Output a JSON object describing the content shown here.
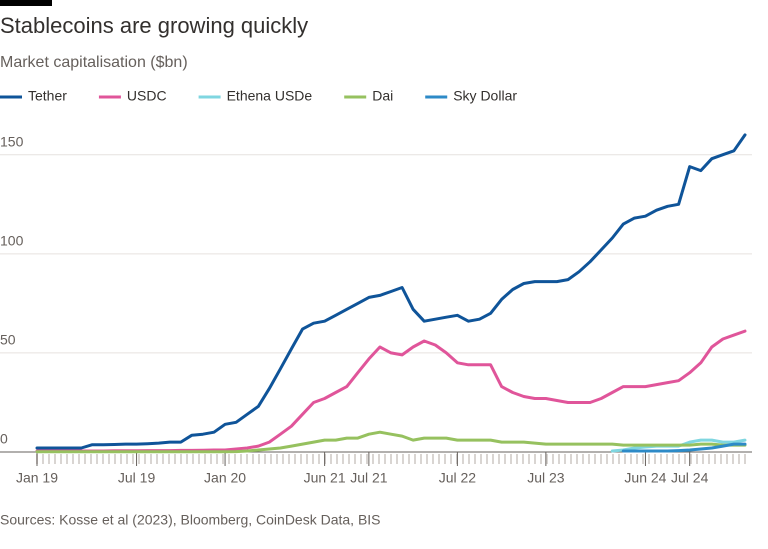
{
  "chart_data": {
    "type": "line",
    "title": "Stablecoins are growing quickly",
    "subtitle": "Market capitalisation ($bn)",
    "source": "Sources: Kosse et al (2023), Bloomberg, CoinDesk Data, BIS",
    "categories": [
      "Jan 19",
      null,
      null,
      null,
      null,
      null,
      null,
      null,
      null,
      "Jul 19",
      null,
      null,
      null,
      null,
      null,
      null,
      null,
      "Jan 20",
      null,
      null,
      null,
      null,
      null,
      null,
      null,
      null,
      "Jun 21",
      null,
      null,
      null,
      "Jul 21",
      null,
      null,
      null,
      null,
      null,
      null,
      null,
      "Jul 22",
      null,
      null,
      null,
      null,
      null,
      null,
      null,
      "Jul 23",
      null,
      null,
      null,
      null,
      null,
      null,
      null,
      null,
      "Jun 24",
      null,
      null,
      null,
      "Jul 24",
      null,
      null,
      null,
      null,
      null
    ],
    "series": [
      {
        "name": "Tether",
        "color": "#0f5499",
        "values": [
          2,
          2,
          2,
          2,
          2,
          3.7,
          3.7,
          3.8,
          4,
          4,
          4.2,
          4.5,
          5,
          5,
          8.5,
          9,
          10,
          14,
          15,
          19,
          23,
          32,
          42,
          52,
          62,
          65,
          66,
          69,
          72,
          75,
          78,
          79,
          81,
          83,
          72,
          66,
          67,
          68,
          69,
          66,
          67,
          70,
          77,
          82,
          85,
          86,
          86,
          86,
          87,
          91,
          96,
          102,
          108,
          115,
          118,
          119,
          122,
          124,
          125,
          144,
          142,
          148,
          150,
          152,
          160
        ]
      },
      {
        "name": "USDC",
        "color": "#e0559a",
        "values": [
          0.5,
          0.5,
          0.5,
          0.5,
          0.5,
          0.5,
          0.5,
          0.6,
          0.6,
          0.6,
          0.7,
          0.7,
          0.7,
          0.8,
          0.8,
          0.9,
          1,
          1,
          1.5,
          2,
          3,
          5,
          9,
          13,
          19,
          25,
          27,
          30,
          33,
          40,
          47,
          53,
          50,
          49,
          53,
          56,
          54,
          50,
          45,
          44,
          44,
          44,
          33,
          30,
          28,
          27,
          27,
          26,
          25,
          25,
          25,
          27,
          30,
          33,
          33,
          33,
          34,
          35,
          36,
          40,
          45,
          53,
          57,
          59,
          61
        ]
      },
      {
        "name": "Ethena USDe",
        "color": "#7fd6e0",
        "values": [
          null,
          null,
          null,
          null,
          null,
          null,
          null,
          null,
          null,
          null,
          null,
          null,
          null,
          null,
          null,
          null,
          null,
          null,
          null,
          null,
          null,
          null,
          null,
          null,
          null,
          null,
          null,
          null,
          null,
          null,
          null,
          null,
          null,
          null,
          null,
          null,
          null,
          null,
          null,
          null,
          null,
          null,
          null,
          null,
          null,
          null,
          null,
          null,
          null,
          null,
          null,
          null,
          0.5,
          1,
          2,
          2.5,
          3,
          3,
          3,
          5,
          6,
          6,
          5,
          5,
          6
        ]
      },
      {
        "name": "Dai",
        "color": "#96c15f",
        "values": [
          0.1,
          0.1,
          0.1,
          0.1,
          0.1,
          0.1,
          0.1,
          0.1,
          0.1,
          0.1,
          0.1,
          0.1,
          0.1,
          0.1,
          0.1,
          0.1,
          0.1,
          0.1,
          0.2,
          0.5,
          1,
          1.5,
          2,
          3,
          4,
          5,
          6,
          6,
          7,
          7,
          9,
          10,
          9,
          8,
          6,
          7,
          7,
          7,
          6,
          6,
          6,
          6,
          5,
          5,
          5,
          4.5,
          4,
          4,
          4,
          4,
          4,
          4,
          4,
          3.5,
          3.5,
          3.5,
          3.5,
          3.5,
          3.5,
          3.5,
          4,
          4,
          3.5,
          3.5,
          3.5
        ]
      },
      {
        "name": "Sky Dollar",
        "color": "#2d8ac7",
        "values": [
          null,
          null,
          null,
          null,
          null,
          null,
          null,
          null,
          null,
          null,
          null,
          null,
          null,
          null,
          null,
          null,
          null,
          null,
          null,
          null,
          null,
          null,
          null,
          null,
          null,
          null,
          null,
          null,
          null,
          null,
          null,
          null,
          null,
          null,
          null,
          null,
          null,
          null,
          null,
          null,
          null,
          null,
          null,
          null,
          null,
          null,
          null,
          null,
          null,
          null,
          null,
          null,
          null,
          0.5,
          0.5,
          0.5,
          0.5,
          0.5,
          0.7,
          1,
          1.5,
          2,
          3,
          4,
          4
        ]
      }
    ],
    "ylim": [
      0,
      165
    ],
    "yticks": [
      0,
      50,
      100,
      150
    ],
    "grid": true,
    "legend": "top"
  }
}
